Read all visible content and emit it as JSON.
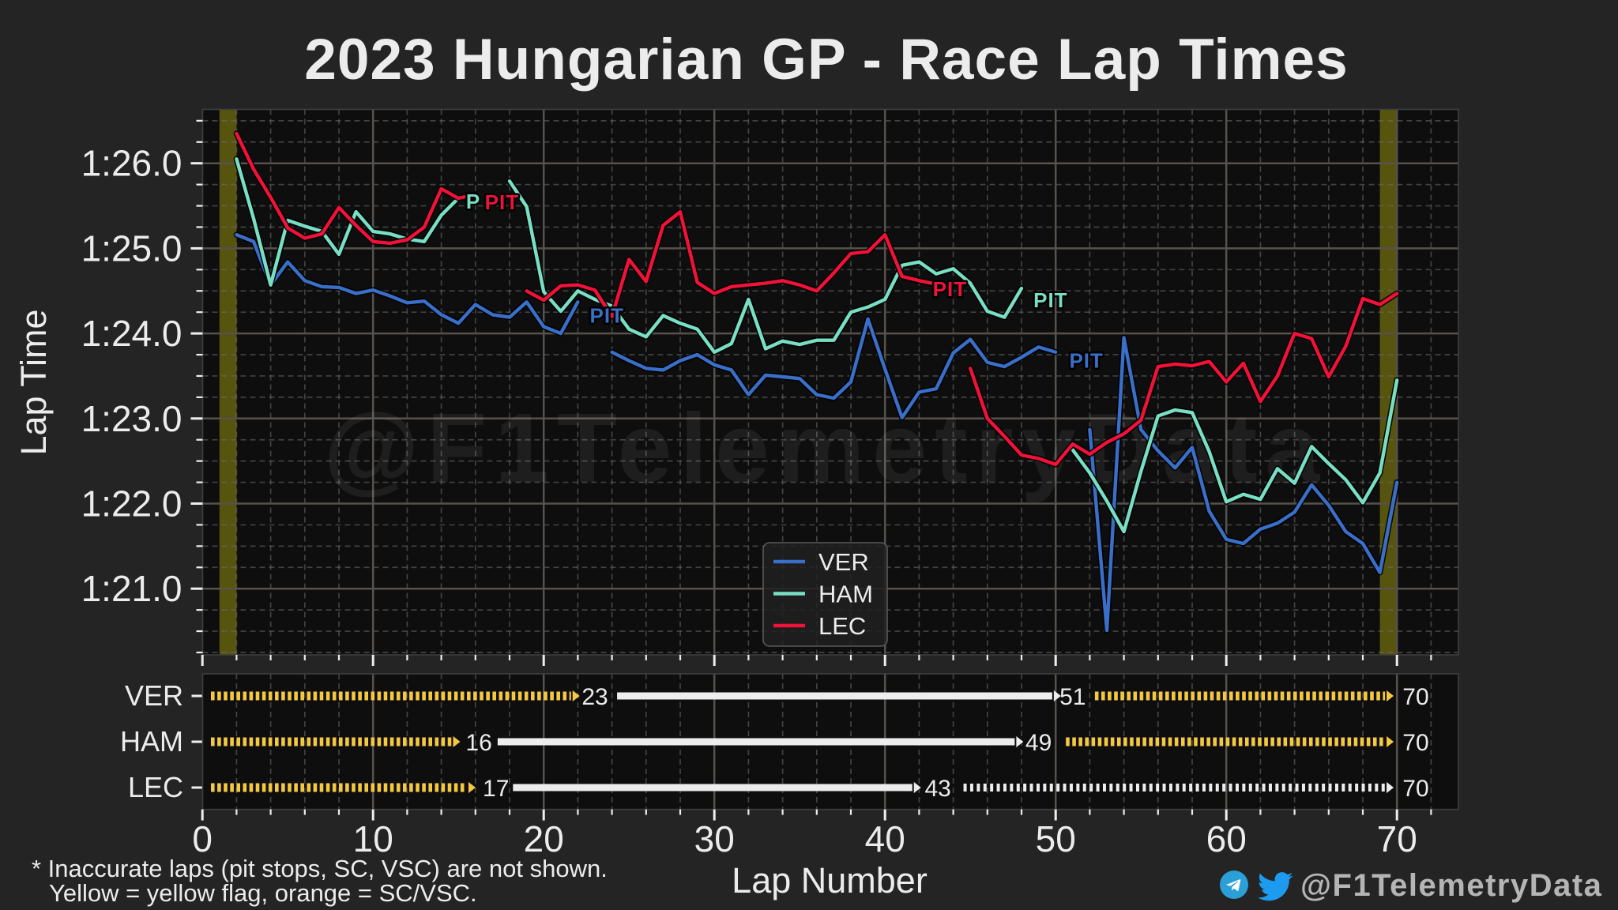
{
  "title": "2023 Hungarian GP - Race Lap Times",
  "watermark": "@F1TelemetryData",
  "footnote": {
    "line1": "* Inaccurate laps (pit stops, SC, VSC) are not shown.",
    "line2": "Yellow = yellow flag, orange = SC/VSC."
  },
  "footer": {
    "handle": "@F1TelemetryData",
    "icons": [
      "telegram-icon",
      "twitter-icon"
    ]
  },
  "colors": {
    "figure_bg": "#242424",
    "axes_bg": "#0e0e0e",
    "grid_major": "#57524b",
    "grid_minor": "#6e6e6e",
    "axes_border": "#3f3f3f",
    "tick": "#efefef",
    "text": "#ececec",
    "yellow_flag_band": "#56540f",
    "ver": "#3a6fc9",
    "ham": "#79dfc4",
    "lec": "#f01238",
    "stint_yellow": "#f5c842",
    "stint_white": "#ededed",
    "footer_handle": "#b5b5b5",
    "telegram_blue": "#2b9fd8",
    "twitter_blue": "#1d9bf0"
  },
  "chart_data": {
    "type": "line",
    "title": "2023 Hungarian GP - Race Lap Times",
    "xlabel": "Lap Number",
    "ylabel": "Lap Time",
    "xlim": [
      0,
      73.6
    ],
    "ylim_seconds": [
      80.22,
      86.63
    ],
    "x_major_ticks": [
      0,
      10,
      20,
      30,
      40,
      50,
      60,
      70
    ],
    "x_minor_step": 2,
    "y_major_ticks": [
      81,
      82,
      83,
      84,
      85,
      86
    ],
    "y_major_tick_labels": [
      "1:21.0",
      "1:22.0",
      "1:23.0",
      "1:24.0",
      "1:25.0",
      "1:26.0"
    ],
    "y_minor_step": 0.25,
    "grid": true,
    "legend_position": "lower-center",
    "yellow_flag_bands": [
      [
        1,
        2
      ],
      [
        69,
        70
      ]
    ],
    "legend": [
      {
        "label": "VER",
        "color_key": "ver"
      },
      {
        "label": "HAM",
        "color_key": "ham"
      },
      {
        "label": "LEC",
        "color_key": "lec"
      }
    ],
    "series": [
      {
        "name": "VER",
        "color_key": "ver",
        "start_lap": 2,
        "laps_s": [
          85.16,
          85.08,
          84.57,
          84.84,
          84.62,
          84.55,
          84.54,
          84.47,
          84.51,
          84.44,
          84.36,
          84.38,
          84.22,
          84.12,
          84.34,
          84.22,
          84.19,
          84.37,
          84.08,
          84.0,
          84.37,
          null,
          83.78,
          83.68,
          83.59,
          83.57,
          83.68,
          83.75,
          83.63,
          83.57,
          83.28,
          83.51,
          83.49,
          83.47,
          83.28,
          83.24,
          83.43,
          84.17,
          83.58,
          83.01,
          83.31,
          83.35,
          83.77,
          83.93,
          83.66,
          83.61,
          83.72,
          83.84,
          83.78,
          null,
          82.87,
          80.51,
          83.95,
          82.87,
          82.62,
          82.42,
          82.66,
          81.91,
          81.58,
          81.53,
          81.7,
          81.77,
          81.9,
          82.22,
          81.98,
          81.67,
          81.53,
          81.19,
          82.25
        ]
      },
      {
        "name": "HAM",
        "color_key": "ham",
        "start_lap": 2,
        "laps_s": [
          86.05,
          85.35,
          84.57,
          85.33,
          85.26,
          85.2,
          84.93,
          85.43,
          85.2,
          85.17,
          85.11,
          85.08,
          85.39,
          85.59,
          null,
          null,
          85.79,
          85.49,
          84.49,
          84.26,
          84.5,
          84.4,
          84.32,
          84.05,
          83.96,
          84.21,
          84.12,
          84.05,
          83.78,
          83.88,
          84.4,
          83.82,
          83.91,
          83.87,
          83.92,
          83.92,
          84.25,
          84.31,
          84.4,
          84.8,
          84.84,
          84.7,
          84.76,
          84.59,
          84.26,
          84.19,
          84.53,
          null,
          null,
          82.63,
          82.36,
          82.03,
          81.67,
          82.38,
          83.03,
          83.1,
          83.07,
          82.61,
          82.02,
          82.11,
          82.05,
          82.41,
          82.24,
          82.67,
          82.47,
          82.28,
          82.01,
          82.36,
          83.45
        ]
      },
      {
        "name": "LEC",
        "color_key": "lec",
        "start_lap": 2,
        "laps_s": [
          86.35,
          85.93,
          85.6,
          85.24,
          85.12,
          85.17,
          85.48,
          85.27,
          85.08,
          85.06,
          85.1,
          85.25,
          85.7,
          85.59,
          85.63,
          null,
          null,
          84.5,
          84.39,
          84.56,
          84.57,
          84.51,
          84.2,
          84.87,
          84.61,
          85.27,
          85.43,
          84.6,
          84.47,
          84.55,
          84.57,
          84.59,
          84.62,
          84.57,
          84.5,
          84.71,
          84.94,
          84.96,
          85.16,
          84.67,
          84.62,
          84.58,
          null,
          83.59,
          83.0,
          82.79,
          82.57,
          82.53,
          82.46,
          82.7,
          82.58,
          82.72,
          82.82,
          82.98,
          83.61,
          83.64,
          83.62,
          83.67,
          83.43,
          83.65,
          83.2,
          83.5,
          84.0,
          83.94,
          83.49,
          83.85,
          84.41,
          84.34,
          84.47
        ]
      }
    ],
    "annotations": [
      {
        "text": "P",
        "series": "HAM",
        "lap": 15.45,
        "seconds": 85.56
      },
      {
        "text": "PIT",
        "series": "LEC",
        "lap": 16.55,
        "seconds": 85.55
      },
      {
        "text": "PIT",
        "series": "VER",
        "lap": 22.7,
        "seconds": 84.22
      },
      {
        "text": "PIT",
        "series": "LEC",
        "lap": 42.8,
        "seconds": 84.53
      },
      {
        "text": "PIT",
        "series": "HAM",
        "lap": 48.7,
        "seconds": 84.4
      },
      {
        "text": "PIT",
        "series": "VER",
        "lap": 50.8,
        "seconds": 83.69
      }
    ],
    "stint_chart": {
      "rows": [
        "VER",
        "HAM",
        "LEC"
      ],
      "stints": {
        "VER": [
          {
            "style": "yellow-dashed",
            "start": 0.5,
            "end": 21.6,
            "label": "23",
            "label_lap": 23.0
          },
          {
            "style": "white-solid",
            "start": 24.3,
            "end": 49.8,
            "label": "51",
            "label_lap": 51.0
          },
          {
            "style": "yellow-dashed",
            "start": 52.3,
            "end": 69.3,
            "label": "70",
            "label_lap": 71.1
          }
        ],
        "HAM": [
          {
            "style": "yellow-dashed",
            "start": 0.5,
            "end": 14.6,
            "label": "16",
            "label_lap": 16.2
          },
          {
            "style": "white-solid",
            "start": 17.3,
            "end": 47.6,
            "label": "49",
            "label_lap": 49.0
          },
          {
            "style": "yellow-dashed",
            "start": 50.6,
            "end": 69.3,
            "label": "70",
            "label_lap": 71.1
          }
        ],
        "LEC": [
          {
            "style": "yellow-dashed",
            "start": 0.5,
            "end": 15.5,
            "label": "17",
            "label_lap": 17.2
          },
          {
            "style": "white-solid",
            "start": 18.2,
            "end": 41.6,
            "label": "43",
            "label_lap": 43.1
          },
          {
            "style": "white-dotted",
            "start": 44.6,
            "end": 69.3,
            "label": "70",
            "label_lap": 71.1
          }
        ]
      }
    }
  }
}
